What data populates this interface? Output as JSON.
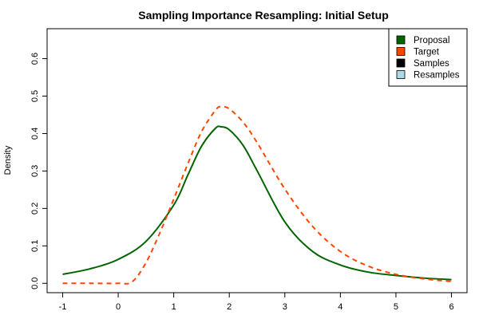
{
  "chart_data": {
    "type": "line",
    "title": "Sampling Importance Resampling: Initial Setup",
    "xlabel": "",
    "ylabel": "Density",
    "xlim": [
      -1.28,
      6.28
    ],
    "ylim": [
      -0.025,
      0.68
    ],
    "x_ticks": [
      -1,
      0,
      1,
      2,
      3,
      4,
      5,
      6
    ],
    "x_tick_labels": [
      "-1",
      "0",
      "1",
      "2",
      "3",
      "4",
      "5",
      "6"
    ],
    "y_ticks": [
      0.0,
      0.1,
      0.2,
      0.3,
      0.4,
      0.5,
      0.6
    ],
    "y_tick_labels": [
      "0.0",
      "0.1",
      "0.2",
      "0.3",
      "0.4",
      "0.5",
      "0.6"
    ],
    "grid": false,
    "legend_position": "top-right",
    "legend": [
      {
        "label": "Proposal",
        "color": "#006400"
      },
      {
        "label": "Target",
        "color": "#FF4500"
      },
      {
        "label": "Samples",
        "color": "#000000"
      },
      {
        "label": "Resamples",
        "color": "#ADD8E6"
      }
    ],
    "series": [
      {
        "name": "Proposal",
        "color": "#006400",
        "style": "solid",
        "x": [
          -1,
          -0.5,
          0,
          0.5,
          1,
          1.25,
          1.5,
          1.75,
          1.85,
          2,
          2.25,
          2.5,
          3,
          3.5,
          4,
          4.5,
          5,
          5.5,
          6
        ],
        "y": [
          0.024,
          0.039,
          0.064,
          0.112,
          0.209,
          0.288,
          0.366,
          0.414,
          0.418,
          0.41,
          0.368,
          0.301,
          0.164,
          0.085,
          0.049,
          0.03,
          0.021,
          0.014,
          0.01
        ]
      },
      {
        "name": "Target",
        "color": "#FF4500",
        "style": "dashed",
        "x": [
          -1,
          -0.5,
          0,
          0.25,
          0.5,
          0.75,
          1,
          1.25,
          1.5,
          1.75,
          1.85,
          2,
          2.25,
          2.5,
          3,
          3.5,
          4,
          4.5,
          5,
          5.5,
          6
        ],
        "y": [
          0.0,
          0.0,
          0.0,
          0.004,
          0.055,
          0.135,
          0.225,
          0.318,
          0.405,
          0.462,
          0.472,
          0.466,
          0.43,
          0.376,
          0.252,
          0.152,
          0.085,
          0.046,
          0.024,
          0.012,
          0.005
        ]
      }
    ]
  }
}
